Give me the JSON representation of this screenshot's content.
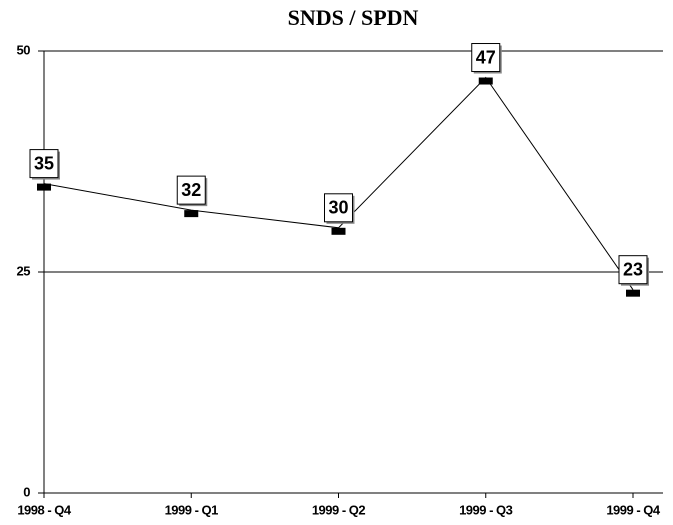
{
  "chart_data": {
    "type": "line",
    "title": "SNDS / SPDN",
    "categories": [
      "1998 - Q4",
      "1999 - Q1",
      "1999 - Q2",
      "1999 - Q3",
      "1999 - Q4"
    ],
    "values": [
      35,
      32,
      30,
      47,
      23
    ],
    "color": "#000000",
    "ylim": [
      0,
      50
    ],
    "yticks": [
      0,
      25,
      50
    ],
    "grid": true
  }
}
